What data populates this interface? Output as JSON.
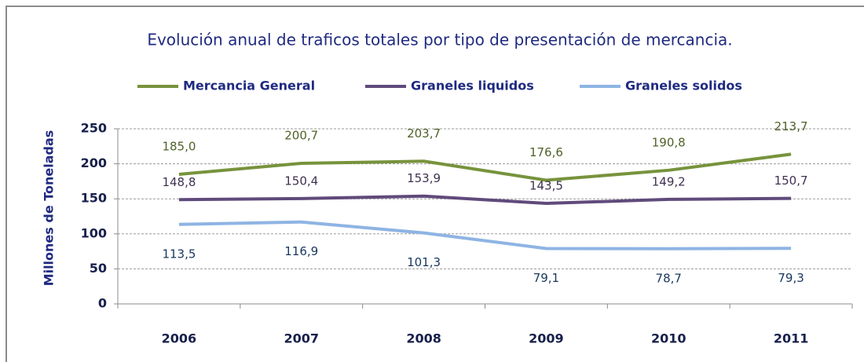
{
  "chart_data": {
    "type": "line",
    "title": "Evolución anual de traficos totales por tipo de presentación de mercancia.",
    "ylabel": "Millones de Toneladas",
    "categories": [
      "2006",
      "2007",
      "2008",
      "2009",
      "2010",
      "2011"
    ],
    "series": [
      {
        "name": "Mercancia General",
        "color": "#77933c",
        "label_color": "#4f6228",
        "values": [
          185.0,
          200.7,
          203.7,
          176.6,
          190.8,
          213.7
        ],
        "value_labels": [
          "185,0",
          "200,7",
          "203,7",
          "176,6",
          "190,8",
          "213,7"
        ]
      },
      {
        "name": "Graneles liquidos",
        "color": "#604a7b",
        "label_color": "#3f3151",
        "values": [
          148.8,
          150.4,
          153.9,
          143.5,
          149.2,
          150.7
        ],
        "value_labels": [
          "148,8",
          "150,4",
          "153,9",
          "143,5",
          "149,2",
          "150,7"
        ]
      },
      {
        "name": "Graneles solidos",
        "color": "#8eb4e3",
        "label_color": "#17375e",
        "values": [
          113.5,
          116.9,
          101.3,
          79.1,
          78.7,
          79.3
        ],
        "value_labels": [
          "113,5",
          "116,9",
          "101,3",
          "79,1",
          "78,7",
          "79,3"
        ]
      }
    ],
    "ylim": [
      0,
      250
    ],
    "yticks": [
      0,
      50,
      100,
      150,
      200,
      250
    ],
    "grid": true,
    "legend": "top"
  }
}
